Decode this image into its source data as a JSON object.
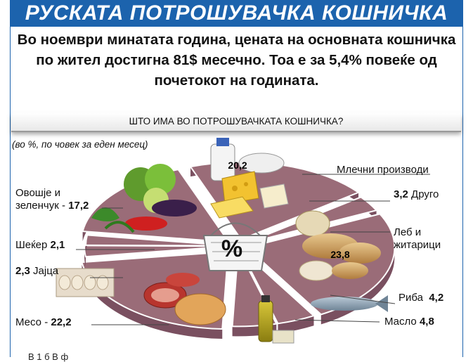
{
  "header": {
    "title": "РУСКАТА ПОТРОШУВАЧКА КОШНИЧКА",
    "subtitle_lines": [
      "Во ноември минатата година, цената на основната кошничка",
      "по жител достигна 81$ месечно. Тоа е за 5,4% повеќе од",
      "почетокот на годината."
    ]
  },
  "question": "ШТО ИМА ВО ПОТРОШУВАЧКАТА КОШНИЧКА?",
  "unit_note": "(во %, по човек за еден месец)",
  "center_symbol": "%",
  "bottom_text": "В                    1    б              В                       ф               ",
  "colors": {
    "title_bg": "#1c63ad",
    "slice": "#9a6c78",
    "slice_top": "#b98a96",
    "slice_dark": "#7a5060",
    "leader": "#444444"
  },
  "chart_data": {
    "type": "pie",
    "title": "ШТО ИМА ВО ПОТРОШУВАЧКАТА КОШНИЧКА?",
    "unit": "(во %, по човек за еден месец)",
    "slices": [
      {
        "label": "Млечни производи",
        "value": 20.2,
        "value_text": "20,2"
      },
      {
        "label": "Друго",
        "value": 3.2,
        "value_text": "3,2"
      },
      {
        "label": "Леб и житарици",
        "value": 23.8,
        "value_text": "23,8"
      },
      {
        "label": "Риба",
        "value": 4.2,
        "value_text": "4,2"
      },
      {
        "label": "Масло",
        "value": 4.8,
        "value_text": "4,8"
      },
      {
        "label": "Месо",
        "value": 22.2,
        "value_text": "22,2"
      },
      {
        "label": "Јајца",
        "value": 2.3,
        "value_text": "2,3"
      },
      {
        "label": "Шеќер",
        "value": 2.1,
        "value_text": "2,1"
      },
      {
        "label": "Овошје и зеленчук",
        "value": 17.2,
        "value_text": "17,2"
      }
    ]
  }
}
